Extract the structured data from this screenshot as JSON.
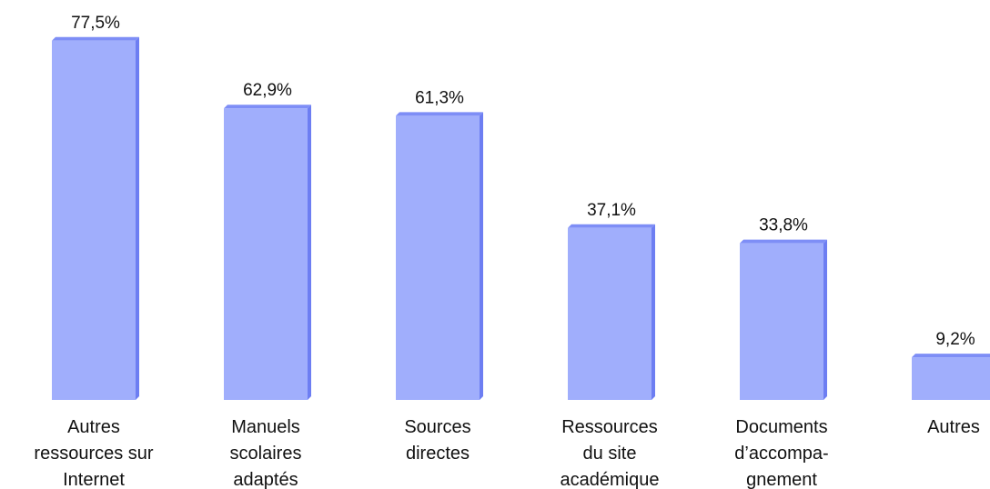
{
  "chart_data": {
    "type": "bar",
    "categories": [
      "Autres\nressources sur\nInternet",
      "Manuels\nscolaires\nadaptés",
      "Sources\ndirectes",
      "Ressources\ndu site\nacadémique",
      "Documents\nd’accompa-\ngnement",
      "Autres"
    ],
    "values": [
      77.5,
      62.9,
      61.3,
      37.1,
      33.8,
      9.2
    ],
    "value_labels": [
      "77,5%",
      "62,9%",
      "61,3%",
      "37,1%",
      "33,8%",
      "9,2%"
    ],
    "color": "#a0aefc"
  }
}
